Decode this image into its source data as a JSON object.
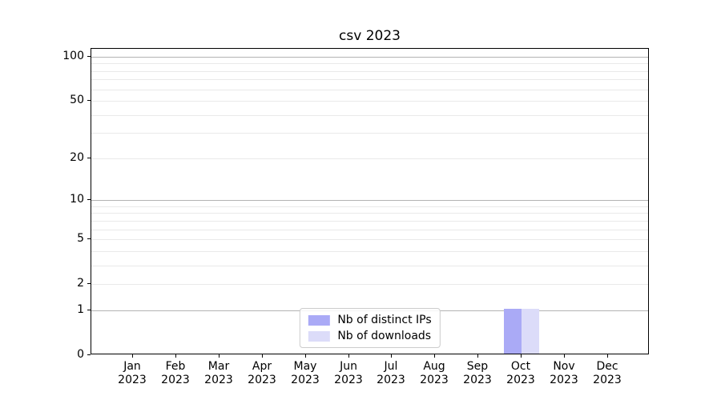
{
  "chart_data": {
    "type": "bar",
    "title": "csv 2023",
    "categories": [
      "Jan",
      "Feb",
      "Mar",
      "Apr",
      "May",
      "Jun",
      "Jul",
      "Aug",
      "Sep",
      "Oct",
      "Nov",
      "Dec"
    ],
    "category_year": "2023",
    "series": [
      {
        "name": "Nb of distinct IPs",
        "color": "#aaaaf6",
        "values": [
          0,
          0,
          0,
          0,
          0,
          0,
          0,
          0,
          0,
          1,
          0,
          0
        ]
      },
      {
        "name": "Nb of downloads",
        "color": "#dcdcf9",
        "values": [
          0,
          0,
          0,
          0,
          0,
          0,
          0,
          0,
          0,
          1,
          0,
          0
        ]
      }
    ],
    "y_axis": {
      "scale": "log1p",
      "tick_labels": [
        0,
        1,
        2,
        5,
        10,
        20,
        50,
        100
      ],
      "major_gridlines": [
        1,
        10,
        100
      ],
      "minor_gridlines": [
        2,
        3,
        4,
        5,
        6,
        7,
        8,
        9,
        20,
        30,
        40,
        50,
        60,
        70,
        80,
        90
      ],
      "max": 113
    },
    "x_axis": {
      "tick_count": 12
    },
    "legend": {
      "location": "lower center",
      "entries": [
        "Nb of distinct IPs",
        "Nb of downloads"
      ]
    },
    "colors": {
      "grid_major": "#b3b3b3",
      "grid_minor": "#e9e9e9",
      "spine": "#000000",
      "text": "#000000",
      "legend_border": "#cccccc"
    }
  }
}
